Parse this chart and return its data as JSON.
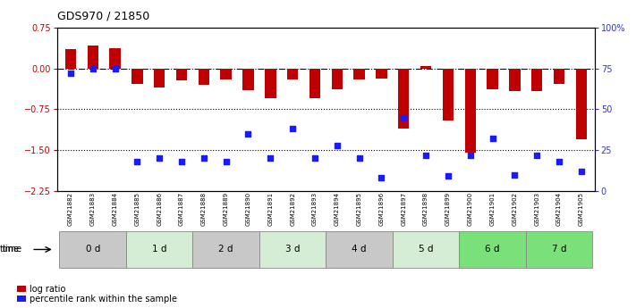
{
  "title": "GDS970 / 21850",
  "samples": [
    "GSM21882",
    "GSM21883",
    "GSM21884",
    "GSM21885",
    "GSM21886",
    "GSM21887",
    "GSM21888",
    "GSM21889",
    "GSM21890",
    "GSM21891",
    "GSM21892",
    "GSM21893",
    "GSM21894",
    "GSM21895",
    "GSM21896",
    "GSM21897",
    "GSM21898",
    "GSM21899",
    "GSM21900",
    "GSM21901",
    "GSM21902",
    "GSM21903",
    "GSM21904",
    "GSM21905"
  ],
  "log_ratio": [
    0.35,
    0.42,
    0.38,
    -0.28,
    -0.35,
    -0.22,
    -0.3,
    -0.2,
    -0.4,
    -0.55,
    -0.2,
    -0.55,
    -0.38,
    -0.2,
    -0.18,
    -1.1,
    0.04,
    -0.95,
    -1.55,
    -0.38,
    -0.42,
    -0.42,
    -0.28,
    -1.3
  ],
  "percentile_rank": [
    72,
    75,
    75,
    18,
    20,
    18,
    20,
    18,
    35,
    20,
    38,
    20,
    28,
    20,
    8,
    45,
    22,
    9,
    22,
    32,
    10,
    22,
    18,
    12
  ],
  "time_groups": [
    {
      "label": "0 d",
      "start": 0,
      "end": 3
    },
    {
      "label": "1 d",
      "start": 3,
      "end": 6
    },
    {
      "label": "2 d",
      "start": 6,
      "end": 9
    },
    {
      "label": "3 d",
      "start": 9,
      "end": 12
    },
    {
      "label": "4 d",
      "start": 12,
      "end": 15
    },
    {
      "label": "5 d",
      "start": 15,
      "end": 18
    },
    {
      "label": "6 d",
      "start": 18,
      "end": 21
    },
    {
      "label": "7 d",
      "start": 21,
      "end": 24
    }
  ],
  "group_colors": {
    "0 d": "#c8c8c8",
    "1 d": "#d4edd4",
    "2 d": "#c8c8c8",
    "3 d": "#d4edd4",
    "4 d": "#c8c8c8",
    "5 d": "#d4edd4",
    "6 d": "#7ae07a",
    "7 d": "#7ae07a"
  },
  "ylim_left": [
    -2.25,
    0.75
  ],
  "ylim_right": [
    0,
    100
  ],
  "yticks_left": [
    0.75,
    0,
    -0.75,
    -1.5,
    -2.25
  ],
  "yticks_right": [
    0,
    25,
    50,
    75,
    100
  ],
  "hlines": [
    -0.75,
    -1.5
  ],
  "bar_color": "#c00000",
  "scatter_color": "#1a1aff",
  "title_color": "#000000",
  "left_axis_color": "#c00000",
  "right_axis_color": "#3333cc",
  "legend_labels": [
    "log ratio",
    "percentile rank within the sample"
  ]
}
